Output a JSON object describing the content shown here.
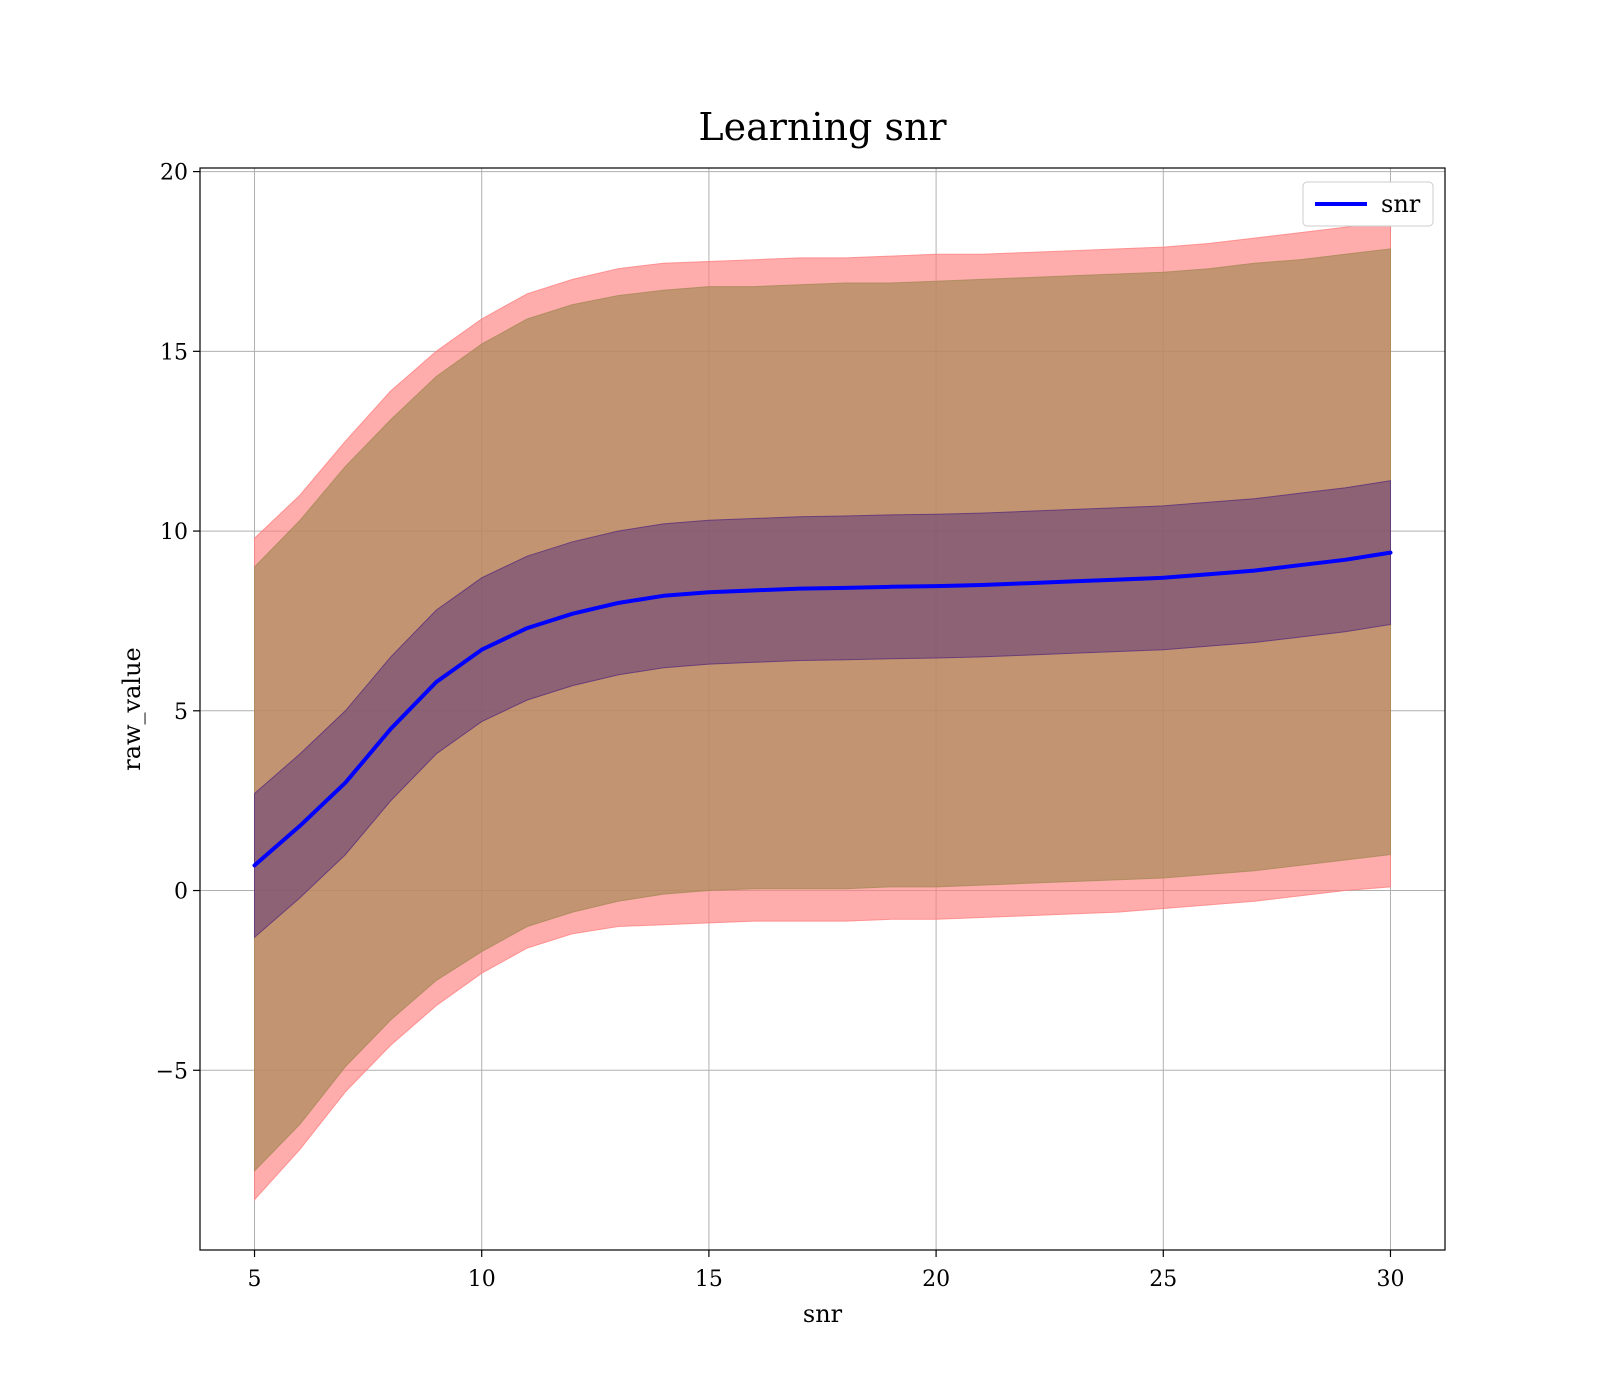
{
  "chart_data": {
    "type": "line",
    "title": "Learning snr",
    "xlabel": "snr",
    "ylabel": "raw_value",
    "xlim": [
      3.8,
      31.2
    ],
    "ylim": [
      -10,
      20.1
    ],
    "xticks": [
      5,
      10,
      15,
      20,
      25,
      30
    ],
    "yticks": [
      -5,
      0,
      5,
      10,
      15,
      20
    ],
    "ytick_labels": [
      "−5",
      "0",
      "5",
      "10",
      "15",
      "20"
    ],
    "grid": true,
    "legend": {
      "position": "top-right",
      "entries": [
        "snr"
      ]
    },
    "colors": {
      "line": "#0000ff",
      "outer_band": "#ff8080",
      "middle_band": "#a88a58",
      "inner_band": "#5a2f7a"
    },
    "x": [
      5,
      6,
      7,
      8,
      9,
      10,
      11,
      12,
      13,
      14,
      15,
      16,
      17,
      18,
      19,
      20,
      21,
      22,
      23,
      24,
      25,
      26,
      27,
      28,
      29,
      30
    ],
    "series": [
      {
        "name": "snr",
        "values": [
          0.7,
          1.8,
          3.0,
          4.5,
          5.8,
          6.7,
          7.3,
          7.7,
          8.0,
          8.2,
          8.3,
          8.35,
          8.4,
          8.42,
          8.45,
          8.47,
          8.5,
          8.55,
          8.6,
          8.65,
          8.7,
          8.8,
          8.9,
          9.05,
          9.2,
          9.4
        ]
      }
    ],
    "bands": [
      {
        "level": "outer",
        "lower": [
          -8.6,
          -7.2,
          -5.6,
          -4.3,
          -3.2,
          -2.3,
          -1.6,
          -1.2,
          -1.0,
          -0.95,
          -0.9,
          -0.85,
          -0.85,
          -0.85,
          -0.8,
          -0.8,
          -0.75,
          -0.7,
          -0.65,
          -0.6,
          -0.5,
          -0.4,
          -0.3,
          -0.15,
          0.0,
          0.1
        ],
        "upper": [
          9.8,
          11.0,
          12.5,
          13.9,
          15.0,
          15.9,
          16.6,
          17.0,
          17.3,
          17.45,
          17.5,
          17.55,
          17.6,
          17.6,
          17.65,
          17.7,
          17.7,
          17.75,
          17.8,
          17.85,
          17.9,
          18.0,
          18.15,
          18.3,
          18.45,
          18.65
        ]
      },
      {
        "level": "middle",
        "lower": [
          -7.8,
          -6.5,
          -4.9,
          -3.6,
          -2.5,
          -1.7,
          -1.0,
          -0.6,
          -0.3,
          -0.1,
          0.0,
          0.05,
          0.05,
          0.05,
          0.1,
          0.1,
          0.15,
          0.2,
          0.25,
          0.3,
          0.35,
          0.45,
          0.55,
          0.7,
          0.85,
          1.0
        ],
        "upper": [
          9.0,
          10.3,
          11.8,
          13.1,
          14.3,
          15.2,
          15.9,
          16.3,
          16.55,
          16.7,
          16.8,
          16.8,
          16.85,
          16.9,
          16.9,
          16.95,
          17.0,
          17.05,
          17.1,
          17.15,
          17.2,
          17.3,
          17.45,
          17.55,
          17.7,
          17.85
        ]
      },
      {
        "level": "inner",
        "lower": [
          -1.3,
          -0.2,
          1.0,
          2.5,
          3.8,
          4.7,
          5.3,
          5.7,
          6.0,
          6.2,
          6.3,
          6.35,
          6.4,
          6.42,
          6.45,
          6.47,
          6.5,
          6.55,
          6.6,
          6.65,
          6.7,
          6.8,
          6.9,
          7.05,
          7.2,
          7.4
        ],
        "upper": [
          2.7,
          3.8,
          5.0,
          6.5,
          7.8,
          8.7,
          9.3,
          9.7,
          10.0,
          10.2,
          10.3,
          10.35,
          10.4,
          10.42,
          10.45,
          10.47,
          10.5,
          10.55,
          10.6,
          10.65,
          10.7,
          10.8,
          10.9,
          11.05,
          11.2,
          11.4
        ]
      }
    ]
  }
}
